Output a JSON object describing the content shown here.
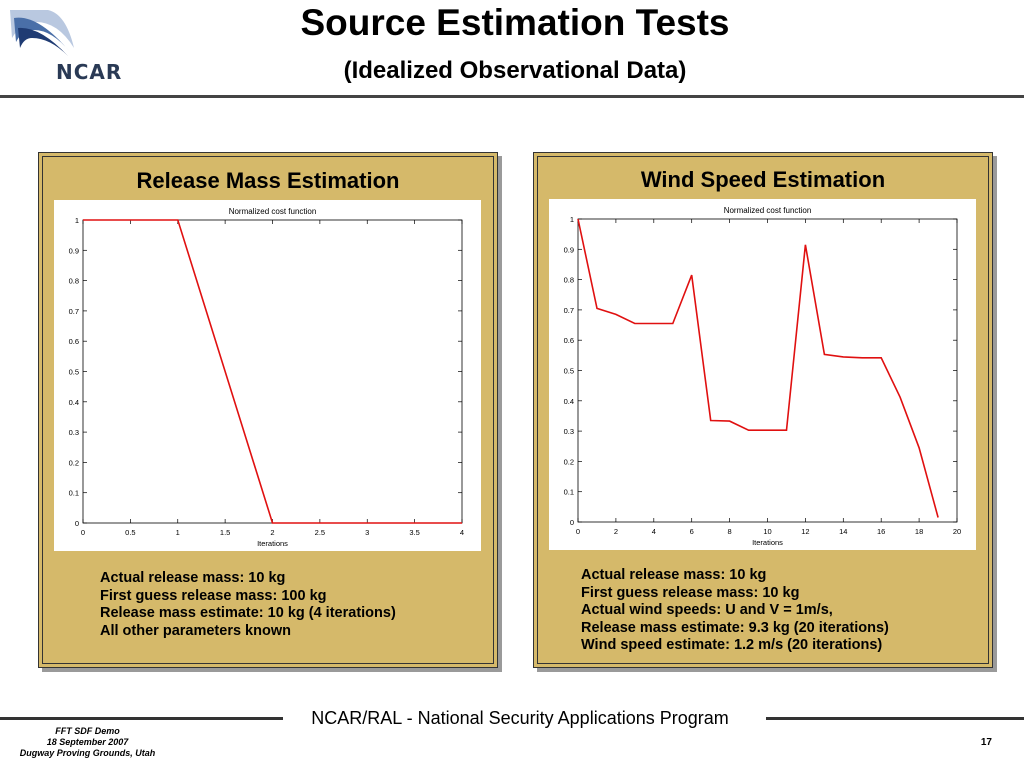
{
  "header": {
    "logo_text": "NCAR",
    "title": "Source Estimation Tests",
    "subtitle": "(Idealized Observational Data)"
  },
  "panels": [
    {
      "title": "Release Mass Estimation",
      "description": [
        "Actual release mass:  10 kg",
        "First guess release mass: 100 kg",
        "Release mass estimate: 10 kg (4 iterations)",
        "All other parameters known"
      ]
    },
    {
      "title": "Wind Speed Estimation",
      "description": [
        "Actual release mass:  10 kg",
        "First guess release mass: 10 kg",
        "Actual wind speeds: U and V = 1m/s,",
        "Release mass estimate: 9.3 kg (20 iterations)",
        "Wind speed estimate: 1.2 m/s (20 iterations)"
      ]
    }
  ],
  "chart_data": [
    {
      "type": "line",
      "title": "Normalized cost function",
      "xlabel": "Iterations",
      "ylabel": "",
      "xlim": [
        0,
        4
      ],
      "ylim": [
        0,
        1
      ],
      "xticks": [
        "0",
        "0.5",
        "1",
        "1.5",
        "2",
        "2.5",
        "3",
        "3.5",
        "4"
      ],
      "yticks": [
        "0",
        "0.1",
        "0.2",
        "0.3",
        "0.4",
        "0.5",
        "0.6",
        "0.7",
        "0.8",
        "0.9",
        "1"
      ],
      "line_color": "#e01010",
      "series": [
        {
          "x": [
            0,
            1,
            2,
            3,
            4
          ],
          "y": [
            1,
            1,
            0,
            0,
            0
          ]
        }
      ]
    },
    {
      "type": "line",
      "title": "Normalized cost function",
      "xlabel": "Iterations",
      "ylabel": "",
      "xlim": [
        0,
        20
      ],
      "ylim": [
        0,
        1
      ],
      "xticks": [
        "0",
        "2",
        "4",
        "6",
        "8",
        "10",
        "12",
        "14",
        "16",
        "18",
        "20"
      ],
      "yticks": [
        "0",
        "0.1",
        "0.2",
        "0.3",
        "0.4",
        "0.5",
        "0.6",
        "0.7",
        "0.8",
        "0.9",
        "1"
      ],
      "line_color": "#e01010",
      "series": [
        {
          "x": [
            0,
            1,
            2,
            3,
            4,
            5,
            6,
            7,
            8,
            9,
            10,
            11,
            12,
            13,
            14,
            15,
            16,
            17,
            18,
            19
          ],
          "y": [
            1.0,
            0.705,
            0.685,
            0.655,
            0.655,
            0.655,
            0.815,
            0.335,
            0.333,
            0.303,
            0.303,
            0.303,
            0.915,
            0.553,
            0.545,
            0.542,
            0.542,
            0.412,
            0.245,
            0.015
          ]
        }
      ]
    }
  ],
  "footer": {
    "program": "NCAR/RAL - National Security Applications Program",
    "left_lines": [
      "FFT SDF Demo",
      "18 September 2007",
      "Dugway Proving Grounds, Utah"
    ],
    "page_number": "17"
  }
}
